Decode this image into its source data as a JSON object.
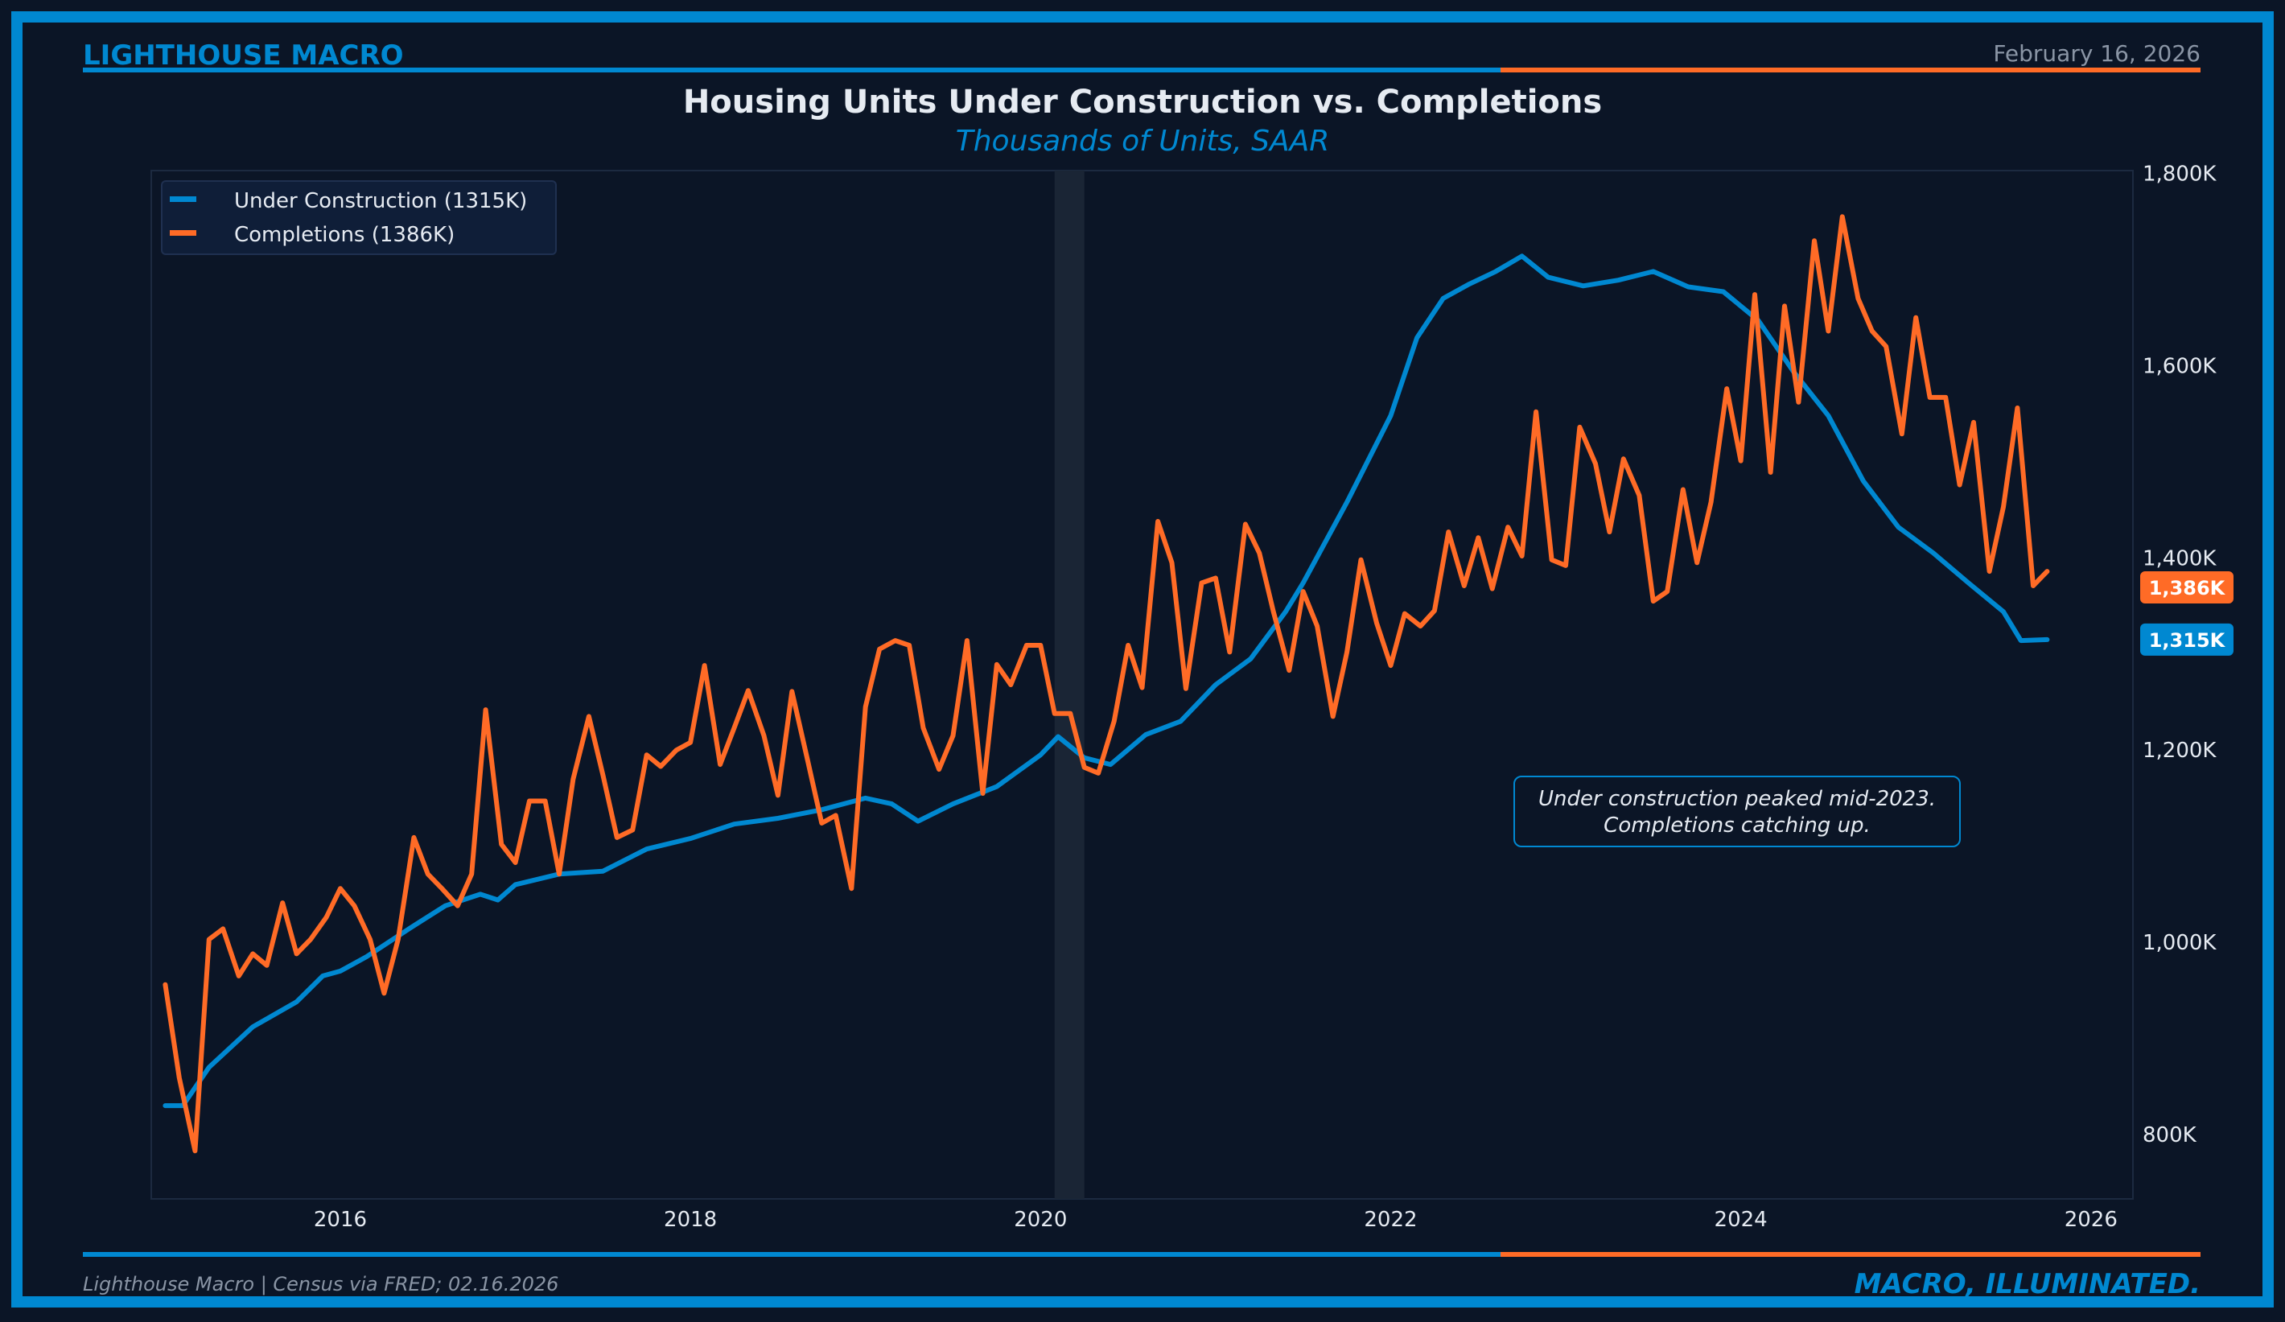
{
  "header": {
    "brand": "LIGHTHOUSE MACRO",
    "date": "February 16, 2026"
  },
  "footer": {
    "source": "Lighthouse Macro | Census via FRED; 02.16.2026",
    "tagline": "MACRO, ILLUMINATED."
  },
  "colors": {
    "background": "#0b1526",
    "frame": "#0088d1",
    "blue": "#0088d1",
    "orange": "#ff6b26",
    "text": "#e6ebf2",
    "muted": "#8a95a5"
  },
  "chart_data": {
    "type": "line",
    "title": "Housing Units Under Construction vs. Completions",
    "subtitle": "Thousands of Units, SAAR",
    "xlabel": "",
    "ylabel": "",
    "xlim": [
      2014.92,
      2026.24
    ],
    "ylim": [
      733,
      1803
    ],
    "x_ticks": [
      2016,
      2018,
      2020,
      2022,
      2024,
      2026
    ],
    "x_tick_labels": [
      "2016",
      "2018",
      "2020",
      "2022",
      "2024",
      "2026"
    ],
    "y_ticks": [
      800,
      1000,
      1200,
      1400,
      1600,
      1800
    ],
    "y_tick_labels": [
      "800K",
      "1,000K",
      "1,200K",
      "1,400K",
      "1,600K",
      "1,800K"
    ],
    "y_axis_side": "right",
    "grid": false,
    "legend_placement": "top-left",
    "shaded_regions": [
      {
        "start": 2020.08,
        "end": 2020.25
      }
    ],
    "annotation": {
      "lines": [
        "Under construction peaked mid-2023.",
        "Completions catching up."
      ],
      "x": 2024.0,
      "y": 1125
    },
    "end_labels": [
      {
        "series": 1,
        "label": "1,386K"
      },
      {
        "series": 0,
        "label": "1,315K"
      }
    ],
    "series": [
      {
        "name": "Under Construction (1315K)",
        "color": "#0088d1",
        "x": [
          2015.0,
          2015.1,
          2015.25,
          2015.5,
          2015.75,
          2015.9,
          2016.0,
          2016.15,
          2016.4,
          2016.6,
          2016.8,
          2016.9,
          2017.0,
          2017.25,
          2017.5,
          2017.75,
          2018.0,
          2018.25,
          2018.5,
          2018.75,
          2019.0,
          2019.15,
          2019.3,
          2019.5,
          2019.75,
          2020.0,
          2020.1,
          2020.25,
          2020.4,
          2020.6,
          2020.8,
          2021.0,
          2021.2,
          2021.4,
          2021.5,
          2021.75,
          2022.0,
          2022.15,
          2022.3,
          2022.45,
          2022.6,
          2022.75,
          2022.9,
          2023.1,
          2023.3,
          2023.5,
          2023.7,
          2023.9,
          2024.1,
          2024.3,
          2024.5,
          2024.7,
          2024.9,
          2025.1,
          2025.3,
          2025.5,
          2025.6,
          2025.75
        ],
        "values": [
          830,
          830,
          870,
          912,
          938,
          965,
          970,
          985,
          1015,
          1038,
          1050,
          1044,
          1060,
          1071,
          1074,
          1097,
          1108,
          1123,
          1129,
          1138,
          1150,
          1144,
          1126,
          1144,
          1162,
          1195,
          1214,
          1192,
          1185,
          1216,
          1230,
          1268,
          1295,
          1344,
          1374,
          1458,
          1548,
          1629,
          1670,
          1685,
          1698,
          1714,
          1692,
          1683,
          1689,
          1698,
          1682,
          1677,
          1647,
          1594,
          1548,
          1480,
          1432,
          1405,
          1374,
          1344,
          1314,
          1315
        ]
      },
      {
        "name": "Completions (1386K)",
        "color": "#ff6b26",
        "x": [
          2015.0,
          2015.08,
          2015.17,
          2015.25,
          2015.33,
          2015.42,
          2015.5,
          2015.58,
          2015.67,
          2015.75,
          2015.83,
          2015.92,
          2016.0,
          2016.08,
          2016.17,
          2016.25,
          2016.33,
          2016.42,
          2016.5,
          2016.58,
          2016.67,
          2016.75,
          2016.83,
          2016.92,
          2017.0,
          2017.08,
          2017.17,
          2017.25,
          2017.33,
          2017.42,
          2017.5,
          2017.58,
          2017.67,
          2017.75,
          2017.83,
          2017.92,
          2018.0,
          2018.08,
          2018.17,
          2018.25,
          2018.33,
          2018.42,
          2018.5,
          2018.58,
          2018.67,
          2018.75,
          2018.83,
          2018.92,
          2019.0,
          2019.08,
          2019.17,
          2019.25,
          2019.33,
          2019.42,
          2019.5,
          2019.58,
          2019.67,
          2019.75,
          2019.83,
          2019.92,
          2020.0,
          2020.08,
          2020.17,
          2020.25,
          2020.33,
          2020.42,
          2020.5,
          2020.58,
          2020.67,
          2020.75,
          2020.83,
          2020.92,
          2021.0,
          2021.08,
          2021.17,
          2021.25,
          2021.33,
          2021.42,
          2021.5,
          2021.58,
          2021.67,
          2021.75,
          2021.83,
          2021.92,
          2022.0,
          2022.08,
          2022.17,
          2022.25,
          2022.33,
          2022.42,
          2022.5,
          2022.58,
          2022.67,
          2022.75,
          2022.83,
          2022.92,
          2023.0,
          2023.08,
          2023.17,
          2023.25,
          2023.33,
          2023.42,
          2023.5,
          2023.58,
          2023.67,
          2023.75,
          2023.83,
          2023.92,
          2024.0,
          2024.08,
          2024.17,
          2024.25,
          2024.33,
          2024.42,
          2024.5,
          2024.58,
          2024.67,
          2024.75,
          2024.83,
          2024.92,
          2025.0,
          2025.08,
          2025.17,
          2025.25,
          2025.33,
          2025.42,
          2025.5,
          2025.58,
          2025.67,
          2025.75
        ],
        "values": [
          956,
          859,
          783,
          1003,
          1014,
          965,
          988,
          976,
          1041,
          988,
          1003,
          1026,
          1056,
          1038,
          1003,
          947,
          1003,
          1109,
          1071,
          1056,
          1038,
          1071,
          1242,
          1102,
          1083,
          1147,
          1147,
          1071,
          1170,
          1235,
          1174,
          1109,
          1117,
          1195,
          1183,
          1200,
          1208,
          1288,
          1185,
          1223,
          1262,
          1215,
          1153,
          1261,
          1189,
          1124,
          1132,
          1056,
          1245,
          1305,
          1314,
          1309,
          1223,
          1180,
          1215,
          1314,
          1155,
          1289,
          1268,
          1309,
          1309,
          1238,
          1238,
          1182,
          1176,
          1230,
          1309,
          1265,
          1438,
          1395,
          1264,
          1374,
          1379,
          1302,
          1435,
          1405,
          1344,
          1283,
          1365,
          1329,
          1235,
          1302,
          1398,
          1332,
          1288,
          1342,
          1329,
          1345,
          1427,
          1371,
          1421,
          1368,
          1432,
          1402,
          1552,
          1398,
          1392,
          1536,
          1498,
          1427,
          1503,
          1465,
          1355,
          1365,
          1471,
          1395,
          1458,
          1576,
          1501,
          1674,
          1489,
          1662,
          1562,
          1730,
          1636,
          1755,
          1670,
          1636,
          1620,
          1529,
          1650,
          1567,
          1567,
          1476,
          1541,
          1386,
          1453,
          1556,
          1371,
          1386
        ]
      }
    ]
  }
}
